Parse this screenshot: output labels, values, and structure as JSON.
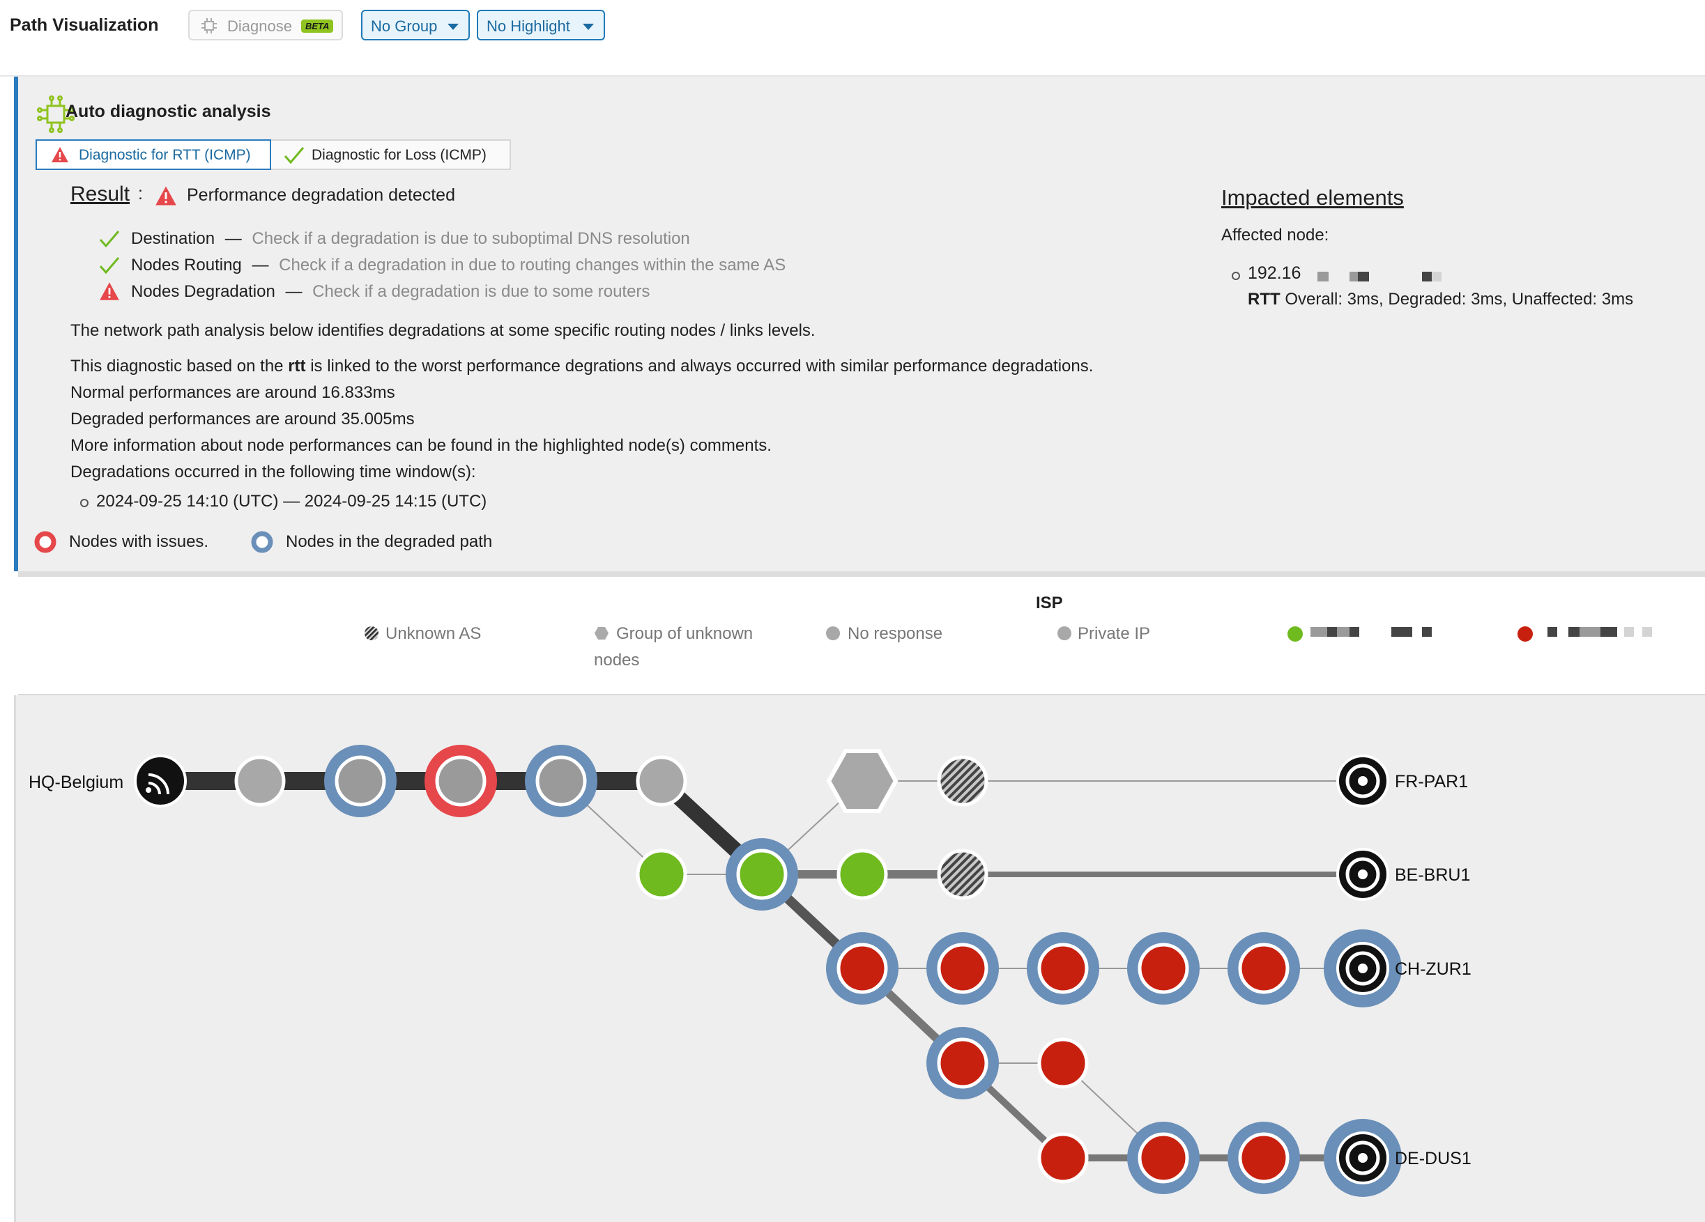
{
  "toolbar": {
    "title": "Path Visualization",
    "diagnose_label": "Diagnose",
    "beta_label": "BETA",
    "group_label": "No Group",
    "highlight_label": "No Highlight"
  },
  "diagnostic": {
    "heading": "Auto diagnostic analysis",
    "tabs": [
      {
        "label": "Diagnostic for RTT (ICMP)",
        "icon": "warning-icon",
        "active": true
      },
      {
        "label": "Diagnostic for Loss (ICMP)",
        "icon": "check-icon",
        "active": false
      }
    ],
    "result_label": "Result",
    "result_colon": ":",
    "result_text": "Performance degradation detected",
    "checks": [
      {
        "name": "Destination",
        "sep": "—",
        "desc": "Check if a degradation is due to suboptimal DNS resolution",
        "status": "ok"
      },
      {
        "name": "Nodes Routing",
        "sep": "—",
        "desc": "Check if a degradation in due to routing changes within the same AS",
        "status": "ok"
      },
      {
        "name": "Nodes Degradation",
        "sep": "—",
        "desc": "Check if a degradation is due to some routers",
        "status": "warning"
      }
    ],
    "summary": "The network path analysis below identifies degradations at some specific routing nodes / links levels.",
    "rtt_line_pre": "This diagnostic based on the ",
    "rtt_line_bold": "rtt",
    "rtt_line_post": " is linked to the worst performance degrations and always occurred with similar performance degradations.",
    "normal": "Normal performances are around 16.833ms",
    "degraded": "Degraded performances are around 35.005ms",
    "more_info": "More information about node performances can be found in the highlighted node(s) comments.",
    "window_intro": "Degradations occurred in the following time window(s):",
    "window": "2024-09-25 14:10 (UTC) — 2024-09-25 14:15 (UTC)",
    "legend_issues": "Nodes with issues.",
    "legend_degraded": "Nodes in the degraded path",
    "impacted_title": "Impacted elements",
    "affected_label": "Affected node:",
    "affected_ip": "192.16",
    "rtt_bold": "RTT",
    "rtt_values": " Overall: 3ms, Degraded: 3ms, Unaffected: 3ms"
  },
  "legend": {
    "isp_title": "ISP",
    "unknown_as": "Unknown AS",
    "group_unknown_1": "Group of unknown",
    "group_unknown_2": "nodes",
    "no_response": "No response",
    "private_ip": "Private IP"
  },
  "colors": {
    "accent": "#2b7bbd",
    "issue_ring": "#e5474b",
    "degraded_ring": "#6a8fb8",
    "green_node": "#6fba1f",
    "red_node": "#c8200f",
    "gray_node": "#a8a8a8"
  },
  "graph": {
    "source": "HQ-Belgium",
    "destinations": [
      "FR-PAR1",
      "BE-BRU1",
      "CH-ZUR1",
      "DE-DUS1"
    ]
  }
}
